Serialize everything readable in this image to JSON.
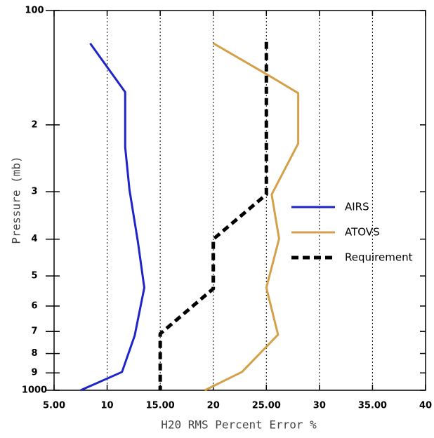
{
  "chart_data": {
    "type": "line",
    "xlabel": "H20 RMS Percent Error %",
    "ylabel": "Pressure (mb)",
    "xlim": [
      5,
      40
    ],
    "xticks": [
      {
        "value": 5,
        "label": "5.00"
      },
      10,
      {
        "value": 15,
        "label": "15.00"
      },
      20,
      {
        "value": 25,
        "label": "25.00"
      },
      30,
      {
        "value": 35,
        "label": "35.00"
      },
      40
    ],
    "ylim": [
      1000,
      100
    ],
    "y_scale": "log",
    "yticks": [
      100,
      {
        "value": 200,
        "label": "2"
      },
      {
        "value": 300,
        "label": "3"
      },
      {
        "value": 400,
        "label": "4"
      },
      {
        "value": 500,
        "label": "5"
      },
      {
        "value": 600,
        "label": "6"
      },
      {
        "value": 700,
        "label": "7"
      },
      {
        "value": 800,
        "label": "8"
      },
      {
        "value": 900,
        "label": "9"
      },
      1000
    ],
    "grid": true,
    "legend": "right",
    "series": [
      {
        "name": "AIRS",
        "color": "#1f24c8",
        "dashed": false,
        "x": [
          8.4,
          11.7,
          11.7,
          12.1,
          12.9,
          13.5,
          12.6,
          11.4,
          7.5
        ],
        "values": [
          122,
          164,
          229,
          296,
          407,
          537,
          717,
          895,
          1000
        ]
      },
      {
        "name": "ATOVS",
        "color": "#d4a04a",
        "dashed": false,
        "x": [
          20,
          25,
          28,
          28,
          25.5,
          26.2,
          25,
          26.1,
          22.7,
          19.2
        ],
        "values": [
          122,
          147,
          165,
          224,
          305,
          399,
          537,
          714,
          895,
          1000
        ]
      },
      {
        "name": "Requirement",
        "color": "#000000",
        "dashed": true,
        "x": [
          25,
          25,
          20,
          20,
          15,
          15
        ],
        "values": [
          121,
          305,
          400,
          540,
          710,
          1000
        ]
      }
    ]
  }
}
